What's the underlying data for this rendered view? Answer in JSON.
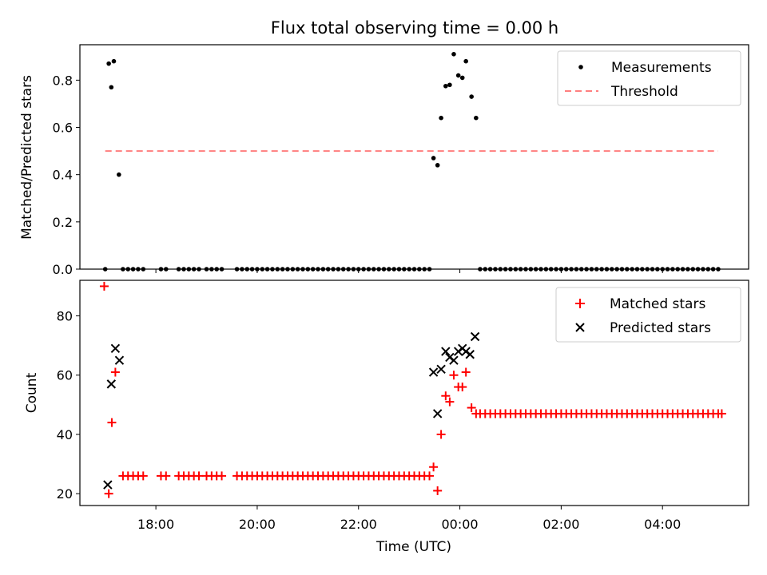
{
  "chart_data": [
    {
      "type": "scatter",
      "title": "Flux total observing time = 0.00 h",
      "xlabel": "",
      "ylabel": "Matched/Predicted stars",
      "xlim": [
        16.5,
        29.7
      ],
      "ylim": [
        0.0,
        0.95
      ],
      "yticks": [
        0.0,
        0.2,
        0.4,
        0.6,
        0.8
      ],
      "ytick_labels": [
        "0.0",
        "0.2",
        "0.4",
        "0.6",
        "0.8"
      ],
      "legend": [
        "Measurements",
        "Threshold"
      ],
      "legend_position": "top-right",
      "threshold": {
        "name": "Threshold",
        "value": 0.5,
        "x_range": [
          17.0,
          29.1
        ],
        "color": "#ff7f7f"
      },
      "series": [
        {
          "name": "Measurements",
          "color": "#000000",
          "points": [
            [
              17.0,
              0.0
            ],
            [
              17.07,
              0.87
            ],
            [
              17.12,
              0.77
            ],
            [
              17.17,
              0.88
            ],
            [
              17.27,
              0.4
            ],
            [
              17.35,
              0.0
            ],
            [
              17.45,
              0.0
            ],
            [
              17.55,
              0.0
            ],
            [
              17.65,
              0.0
            ],
            [
              17.75,
              0.0
            ],
            [
              18.1,
              0.0
            ],
            [
              18.2,
              0.0
            ],
            [
              18.45,
              0.0
            ],
            [
              18.55,
              0.0
            ],
            [
              18.65,
              0.0
            ],
            [
              18.75,
              0.0
            ],
            [
              18.85,
              0.0
            ],
            [
              19.0,
              0.0
            ],
            [
              19.1,
              0.0
            ],
            [
              19.2,
              0.0
            ],
            [
              19.3,
              0.0
            ],
            [
              19.6,
              0.0
            ],
            [
              19.7,
              0.0
            ],
            [
              19.8,
              0.0
            ],
            [
              19.9,
              0.0
            ],
            [
              20.0,
              0.0
            ],
            [
              20.1,
              0.0
            ],
            [
              20.2,
              0.0
            ],
            [
              20.3,
              0.0
            ],
            [
              20.4,
              0.0
            ],
            [
              20.5,
              0.0
            ],
            [
              20.6,
              0.0
            ],
            [
              20.7,
              0.0
            ],
            [
              20.8,
              0.0
            ],
            [
              20.9,
              0.0
            ],
            [
              21.0,
              0.0
            ],
            [
              21.1,
              0.0
            ],
            [
              21.2,
              0.0
            ],
            [
              21.3,
              0.0
            ],
            [
              21.4,
              0.0
            ],
            [
              21.5,
              0.0
            ],
            [
              21.6,
              0.0
            ],
            [
              21.7,
              0.0
            ],
            [
              21.8,
              0.0
            ],
            [
              21.9,
              0.0
            ],
            [
              22.0,
              0.0
            ],
            [
              22.1,
              0.0
            ],
            [
              22.2,
              0.0
            ],
            [
              22.3,
              0.0
            ],
            [
              22.4,
              0.0
            ],
            [
              22.5,
              0.0
            ],
            [
              22.6,
              0.0
            ],
            [
              22.7,
              0.0
            ],
            [
              22.8,
              0.0
            ],
            [
              22.9,
              0.0
            ],
            [
              23.0,
              0.0
            ],
            [
              23.1,
              0.0
            ],
            [
              23.2,
              0.0
            ],
            [
              23.3,
              0.0
            ],
            [
              23.4,
              0.0
            ],
            [
              23.48,
              0.47
            ],
            [
              23.56,
              0.44
            ],
            [
              23.63,
              0.64
            ],
            [
              23.72,
              0.775
            ],
            [
              23.8,
              0.78
            ],
            [
              23.88,
              0.91
            ],
            [
              23.97,
              0.82
            ],
            [
              24.05,
              0.81
            ],
            [
              24.12,
              0.88
            ],
            [
              24.23,
              0.73
            ],
            [
              24.32,
              0.64
            ],
            [
              24.4,
              0.0
            ],
            [
              24.5,
              0.0
            ],
            [
              24.6,
              0.0
            ],
            [
              24.7,
              0.0
            ],
            [
              24.8,
              0.0
            ],
            [
              24.9,
              0.0
            ],
            [
              25.0,
              0.0
            ],
            [
              25.1,
              0.0
            ],
            [
              25.2,
              0.0
            ],
            [
              25.3,
              0.0
            ],
            [
              25.4,
              0.0
            ],
            [
              25.5,
              0.0
            ],
            [
              25.6,
              0.0
            ],
            [
              25.7,
              0.0
            ],
            [
              25.8,
              0.0
            ],
            [
              25.9,
              0.0
            ],
            [
              26.0,
              0.0
            ],
            [
              26.1,
              0.0
            ],
            [
              26.2,
              0.0
            ],
            [
              26.3,
              0.0
            ],
            [
              26.4,
              0.0
            ],
            [
              26.5,
              0.0
            ],
            [
              26.6,
              0.0
            ],
            [
              26.7,
              0.0
            ],
            [
              26.8,
              0.0
            ],
            [
              26.9,
              0.0
            ],
            [
              27.0,
              0.0
            ],
            [
              27.1,
              0.0
            ],
            [
              27.2,
              0.0
            ],
            [
              27.3,
              0.0
            ],
            [
              27.4,
              0.0
            ],
            [
              27.5,
              0.0
            ],
            [
              27.6,
              0.0
            ],
            [
              27.7,
              0.0
            ],
            [
              27.8,
              0.0
            ],
            [
              27.9,
              0.0
            ],
            [
              28.0,
              0.0
            ],
            [
              28.1,
              0.0
            ],
            [
              28.2,
              0.0
            ],
            [
              28.3,
              0.0
            ],
            [
              28.4,
              0.0
            ],
            [
              28.5,
              0.0
            ],
            [
              28.6,
              0.0
            ],
            [
              28.7,
              0.0
            ],
            [
              28.8,
              0.0
            ],
            [
              28.9,
              0.0
            ],
            [
              29.0,
              0.0
            ],
            [
              29.1,
              0.0
            ]
          ]
        }
      ]
    },
    {
      "type": "scatter",
      "title": "",
      "xlabel": "Time (UTC)",
      "ylabel": "Count",
      "xlim": [
        16.5,
        29.7
      ],
      "ylim": [
        16,
        92
      ],
      "xticks": [
        18,
        20,
        22,
        24,
        26,
        28
      ],
      "xtick_labels": [
        "18:00",
        "20:00",
        "22:00",
        "00:00",
        "02:00",
        "04:00"
      ],
      "yticks": [
        20,
        40,
        60,
        80
      ],
      "ytick_labels": [
        "20",
        "40",
        "60",
        "80"
      ],
      "legend": [
        "Matched stars",
        "Predicted stars"
      ],
      "legend_position": "top-right",
      "series": [
        {
          "name": "Matched stars",
          "marker": "plus",
          "color": "#ff0000",
          "points": [
            [
              16.98,
              90
            ],
            [
              17.07,
              20
            ],
            [
              17.13,
              44
            ],
            [
              17.2,
              61
            ],
            [
              17.35,
              26
            ],
            [
              17.45,
              26
            ],
            [
              17.55,
              26
            ],
            [
              17.65,
              26
            ],
            [
              17.75,
              26
            ],
            [
              18.1,
              26
            ],
            [
              18.2,
              26
            ],
            [
              18.45,
              26
            ],
            [
              18.55,
              26
            ],
            [
              18.65,
              26
            ],
            [
              18.75,
              26
            ],
            [
              18.85,
              26
            ],
            [
              19.0,
              26
            ],
            [
              19.1,
              26
            ],
            [
              19.2,
              26
            ],
            [
              19.3,
              26
            ],
            [
              19.6,
              26
            ],
            [
              19.7,
              26
            ],
            [
              19.8,
              26
            ],
            [
              19.9,
              26
            ],
            [
              20.0,
              26
            ],
            [
              20.1,
              26
            ],
            [
              20.2,
              26
            ],
            [
              20.3,
              26
            ],
            [
              20.4,
              26
            ],
            [
              20.5,
              26
            ],
            [
              20.6,
              26
            ],
            [
              20.7,
              26
            ],
            [
              20.8,
              26
            ],
            [
              20.9,
              26
            ],
            [
              21.0,
              26
            ],
            [
              21.1,
              26
            ],
            [
              21.2,
              26
            ],
            [
              21.3,
              26
            ],
            [
              21.4,
              26
            ],
            [
              21.5,
              26
            ],
            [
              21.6,
              26
            ],
            [
              21.7,
              26
            ],
            [
              21.8,
              26
            ],
            [
              21.9,
              26
            ],
            [
              22.0,
              26
            ],
            [
              22.1,
              26
            ],
            [
              22.2,
              26
            ],
            [
              22.3,
              26
            ],
            [
              22.4,
              26
            ],
            [
              22.5,
              26
            ],
            [
              22.6,
              26
            ],
            [
              22.7,
              26
            ],
            [
              22.8,
              26
            ],
            [
              22.9,
              26
            ],
            [
              23.0,
              26
            ],
            [
              23.1,
              26
            ],
            [
              23.2,
              26
            ],
            [
              23.3,
              26
            ],
            [
              23.4,
              26
            ],
            [
              23.48,
              29
            ],
            [
              23.56,
              21
            ],
            [
              23.63,
              40
            ],
            [
              23.72,
              53
            ],
            [
              23.8,
              51
            ],
            [
              23.88,
              60
            ],
            [
              23.97,
              56
            ],
            [
              24.05,
              56
            ],
            [
              24.12,
              61
            ],
            [
              24.23,
              49
            ],
            [
              24.32,
              47
            ],
            [
              24.4,
              47
            ],
            [
              24.5,
              47
            ],
            [
              24.6,
              47
            ],
            [
              24.7,
              47
            ],
            [
              24.8,
              47
            ],
            [
              24.9,
              47
            ],
            [
              25.0,
              47
            ],
            [
              25.1,
              47
            ],
            [
              25.2,
              47
            ],
            [
              25.3,
              47
            ],
            [
              25.4,
              47
            ],
            [
              25.5,
              47
            ],
            [
              25.6,
              47
            ],
            [
              25.7,
              47
            ],
            [
              25.8,
              47
            ],
            [
              25.9,
              47
            ],
            [
              26.0,
              47
            ],
            [
              26.1,
              47
            ],
            [
              26.2,
              47
            ],
            [
              26.3,
              47
            ],
            [
              26.4,
              47
            ],
            [
              26.5,
              47
            ],
            [
              26.6,
              47
            ],
            [
              26.7,
              47
            ],
            [
              26.8,
              47
            ],
            [
              26.9,
              47
            ],
            [
              27.0,
              47
            ],
            [
              27.1,
              47
            ],
            [
              27.2,
              47
            ],
            [
              27.3,
              47
            ],
            [
              27.4,
              47
            ],
            [
              27.5,
              47
            ],
            [
              27.6,
              47
            ],
            [
              27.7,
              47
            ],
            [
              27.8,
              47
            ],
            [
              27.9,
              47
            ],
            [
              28.0,
              47
            ],
            [
              28.1,
              47
            ],
            [
              28.2,
              47
            ],
            [
              28.3,
              47
            ],
            [
              28.4,
              47
            ],
            [
              28.5,
              47
            ],
            [
              28.6,
              47
            ],
            [
              28.7,
              47
            ],
            [
              28.8,
              47
            ],
            [
              28.9,
              47
            ],
            [
              29.0,
              47
            ],
            [
              29.1,
              47
            ],
            [
              29.17,
              47
            ]
          ]
        },
        {
          "name": "Predicted stars",
          "marker": "x",
          "color": "#000000",
          "points": [
            [
              17.05,
              23
            ],
            [
              17.12,
              57
            ],
            [
              17.2,
              69
            ],
            [
              17.28,
              65
            ],
            [
              23.48,
              61
            ],
            [
              23.56,
              47
            ],
            [
              23.63,
              62
            ],
            [
              23.72,
              68
            ],
            [
              23.8,
              66
            ],
            [
              23.88,
              65
            ],
            [
              23.97,
              68
            ],
            [
              24.05,
              69
            ],
            [
              24.12,
              68
            ],
            [
              24.2,
              67
            ],
            [
              24.3,
              73
            ]
          ]
        }
      ]
    }
  ]
}
